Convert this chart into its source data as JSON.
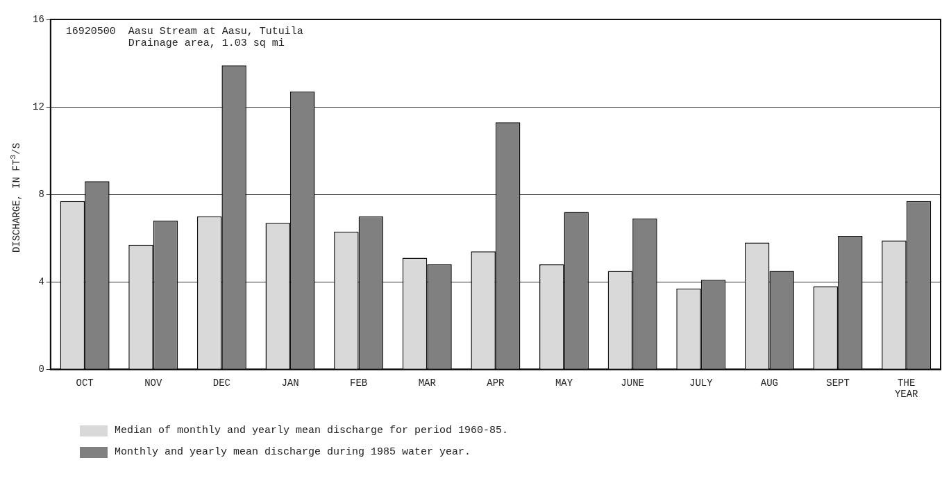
{
  "chart_data": {
    "type": "bar",
    "annotations": [
      "16920500  Aasu Stream at Aasu, Tutuila",
      "Drainage area, 1.03 sq mi"
    ],
    "ylabel": "DISCHARGE, IN FT$^{3}$/S",
    "categories": [
      "OCT",
      "NOV",
      "DEC",
      "JAN",
      "FEB",
      "MAR",
      "APR",
      "MAY",
      "JUNE",
      "JULY",
      "AUG",
      "SEPT",
      "THE YEAR"
    ],
    "series": [
      {
        "name": "Median of monthly and yearly mean discharge for period 1960-85.",
        "color": "#d9d9d9",
        "values": [
          7.7,
          5.7,
          7.0,
          6.7,
          6.3,
          5.1,
          5.4,
          4.8,
          4.5,
          3.7,
          5.8,
          3.8,
          5.9
        ]
      },
      {
        "name": "Monthly and yearly mean discharge during 1985 water year.",
        "color": "#808080",
        "values": [
          8.6,
          6.8,
          13.9,
          12.7,
          7.0,
          4.8,
          11.3,
          7.2,
          6.9,
          4.1,
          4.5,
          6.1,
          7.7
        ]
      }
    ],
    "ylim": [
      0,
      16
    ],
    "yticks": [
      0,
      4,
      8,
      12,
      16
    ],
    "grid": "y",
    "legend": "bottom"
  }
}
